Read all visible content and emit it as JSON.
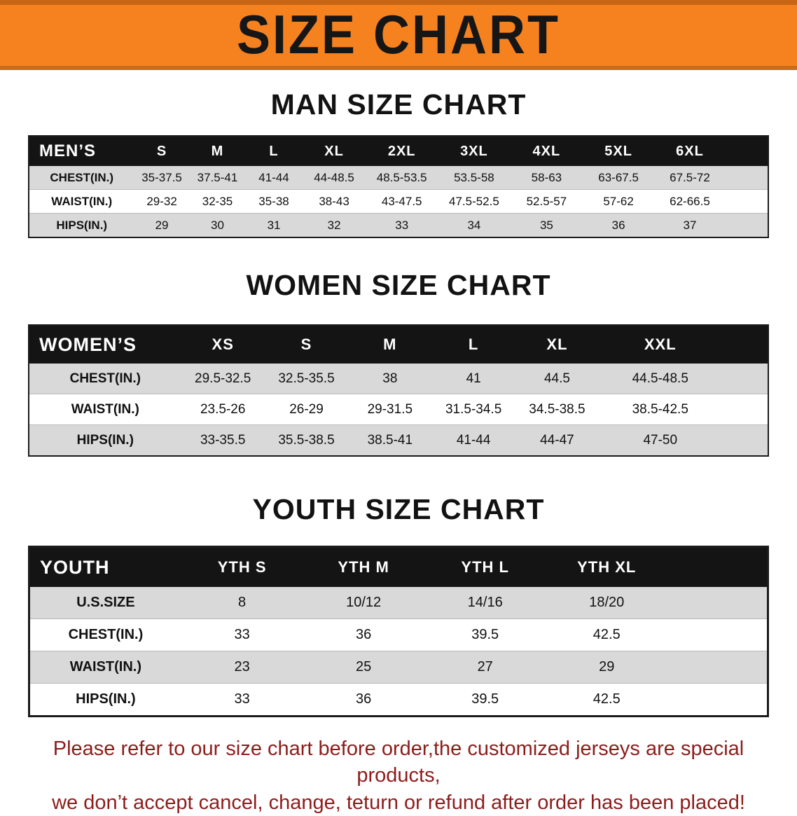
{
  "banner": {
    "title": "SIZE CHART"
  },
  "colors": {
    "banner_orange": "#f5821f",
    "header_black": "#141414",
    "row_gray": "#d9d9d9",
    "footer_red": "#8e1c1c"
  },
  "men": {
    "section_title": "MAN SIZE CHART",
    "label": "MEN’S",
    "sizes": [
      "S",
      "M",
      "L",
      "XL",
      "2XL",
      "3XL",
      "4XL",
      "5XL",
      "6XL"
    ],
    "rows": [
      {
        "label": "CHEST(IN.)",
        "values": [
          "35-37.5",
          "37.5-41",
          "41-44",
          "44-48.5",
          "48.5-53.5",
          "53.5-58",
          "58-63",
          "63-67.5",
          "67.5-72"
        ]
      },
      {
        "label": "WAIST(IN.)",
        "values": [
          "29-32",
          "32-35",
          "35-38",
          "38-43",
          "43-47.5",
          "47.5-52.5",
          "52.5-57",
          "57-62",
          "62-66.5"
        ]
      },
      {
        "label": "HIPS(IN.)",
        "values": [
          "29",
          "30",
          "31",
          "32",
          "33",
          "34",
          "35",
          "36",
          "37"
        ]
      }
    ]
  },
  "women": {
    "section_title": "WOMEN SIZE CHART",
    "label": "WOMEN’S",
    "sizes": [
      "XS",
      "S",
      "M",
      "L",
      "XL",
      "XXL"
    ],
    "rows": [
      {
        "label": "CHEST(IN.)",
        "values": [
          "29.5-32.5",
          "32.5-35.5",
          "38",
          "41",
          "44.5",
          "44.5-48.5"
        ]
      },
      {
        "label": "WAIST(IN.)",
        "values": [
          "23.5-26",
          "26-29",
          "29-31.5",
          "31.5-34.5",
          "34.5-38.5",
          "38.5-42.5"
        ]
      },
      {
        "label": "HIPS(IN.)",
        "values": [
          "33-35.5",
          "35.5-38.5",
          "38.5-41",
          "41-44",
          "44-47",
          "47-50"
        ]
      }
    ]
  },
  "youth": {
    "section_title": "YOUTH SIZE CHART",
    "label": "YOUTH",
    "sizes": [
      "YTH S",
      "YTH M",
      "YTH L",
      "YTH XL"
    ],
    "rows": [
      {
        "label": "U.S.SIZE",
        "values": [
          "8",
          "10/12",
          "14/16",
          "18/20"
        ]
      },
      {
        "label": "CHEST(IN.)",
        "values": [
          "33",
          "36",
          "39.5",
          "42.5"
        ]
      },
      {
        "label": "WAIST(IN.)",
        "values": [
          "23",
          "25",
          "27",
          "29"
        ]
      },
      {
        "label": "HIPS(IN.)",
        "values": [
          "33",
          "36",
          "39.5",
          "42.5"
        ]
      }
    ]
  },
  "footer": {
    "line1": "Please refer to our size chart before order,the customized jerseys are special products,",
    "line2": "we don’t accept cancel, change, teturn or refund after order has been placed!"
  }
}
